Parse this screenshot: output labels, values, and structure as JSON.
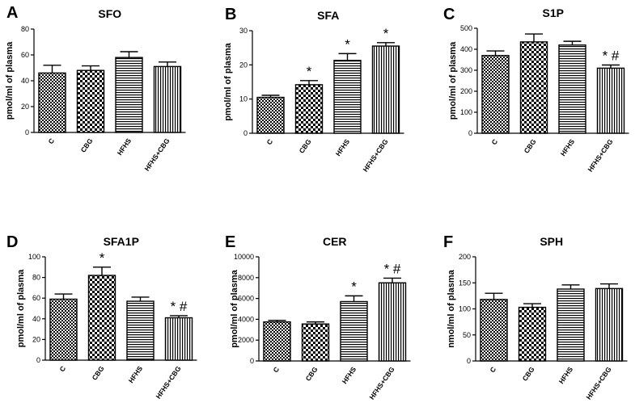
{
  "chart_data": [
    {
      "type": "bar",
      "panel": "A",
      "title": "SFO",
      "ylabel": "pmol/ml of plasma",
      "categories": [
        "C",
        "CBG",
        "HFHS",
        "HFHS+CBG"
      ],
      "values": [
        46,
        48,
        58,
        51
      ],
      "errors": [
        6,
        3.5,
        4.5,
        3.5
      ],
      "annotations": [
        "",
        "",
        "",
        ""
      ],
      "ylim": [
        0,
        80
      ],
      "yticks": [
        0,
        20,
        40,
        60,
        80
      ],
      "patterns": [
        "checker",
        "checker-large",
        "hlines",
        "vlines"
      ]
    },
    {
      "type": "bar",
      "panel": "B",
      "title": "SFA",
      "ylabel": "pmol/ml of plasma",
      "categories": [
        "C",
        "CBG",
        "HFHS",
        "HFHS+CBG"
      ],
      "values": [
        10.5,
        14.2,
        21.3,
        25.5
      ],
      "errors": [
        0.6,
        1.2,
        2.0,
        1.0
      ],
      "annotations": [
        "",
        "*",
        "*",
        "*"
      ],
      "ylim": [
        0,
        30
      ],
      "yticks": [
        0,
        10,
        20,
        30
      ],
      "patterns": [
        "checker",
        "checker-large",
        "hlines",
        "vlines"
      ]
    },
    {
      "type": "bar",
      "panel": "C",
      "title": "S1P",
      "ylabel": "pmol/ml of plasma",
      "categories": [
        "C",
        "CBG",
        "HFHS",
        "HFHS+CBG"
      ],
      "values": [
        370,
        435,
        420,
        310
      ],
      "errors": [
        22,
        38,
        18,
        15
      ],
      "annotations": [
        "",
        "",
        "",
        "* #"
      ],
      "ylim": [
        0,
        500
      ],
      "yticks": [
        0,
        100,
        200,
        300,
        400,
        500
      ],
      "patterns": [
        "checker",
        "checker-large",
        "hlines",
        "vlines"
      ]
    },
    {
      "type": "bar",
      "panel": "D",
      "title": "SFA1P",
      "ylabel": "pmol/ml of plasma",
      "categories": [
        "C",
        "CBG",
        "HFHS",
        "HFHS+CBG"
      ],
      "values": [
        59,
        82,
        57,
        41
      ],
      "errors": [
        5,
        8,
        4,
        2
      ],
      "annotations": [
        "",
        "*",
        "",
        "* #"
      ],
      "ylim": [
        0,
        100
      ],
      "yticks": [
        0,
        20,
        40,
        60,
        80,
        100
      ],
      "patterns": [
        "checker",
        "checker-large",
        "hlines",
        "vlines"
      ]
    },
    {
      "type": "bar",
      "panel": "E",
      "title": "CER",
      "ylabel": "pmol/ml of plasma",
      "categories": [
        "C",
        "CBG",
        "HFHS",
        "HFHS+CBG"
      ],
      "values": [
        3750,
        3550,
        5700,
        7500
      ],
      "errors": [
        150,
        200,
        550,
        450
      ],
      "annotations": [
        "",
        "",
        "*",
        "* #"
      ],
      "ylim": [
        0,
        10000
      ],
      "yticks": [
        0,
        2000,
        4000,
        6000,
        8000,
        10000
      ],
      "patterns": [
        "checker",
        "checker-large",
        "hlines",
        "vlines"
      ]
    },
    {
      "type": "bar",
      "panel": "F",
      "title": "SPH",
      "ylabel": "nmol/ml of plasma",
      "categories": [
        "C",
        "CBG",
        "HFHS",
        "HFHS+CBG"
      ],
      "values": [
        118,
        103,
        138,
        139
      ],
      "errors": [
        12,
        7,
        8,
        9
      ],
      "annotations": [
        "",
        "",
        "",
        ""
      ],
      "ylim": [
        0,
        200
      ],
      "yticks": [
        0,
        50,
        100,
        150,
        200
      ],
      "patterns": [
        "checker",
        "checker-large",
        "hlines",
        "vlines"
      ]
    }
  ]
}
